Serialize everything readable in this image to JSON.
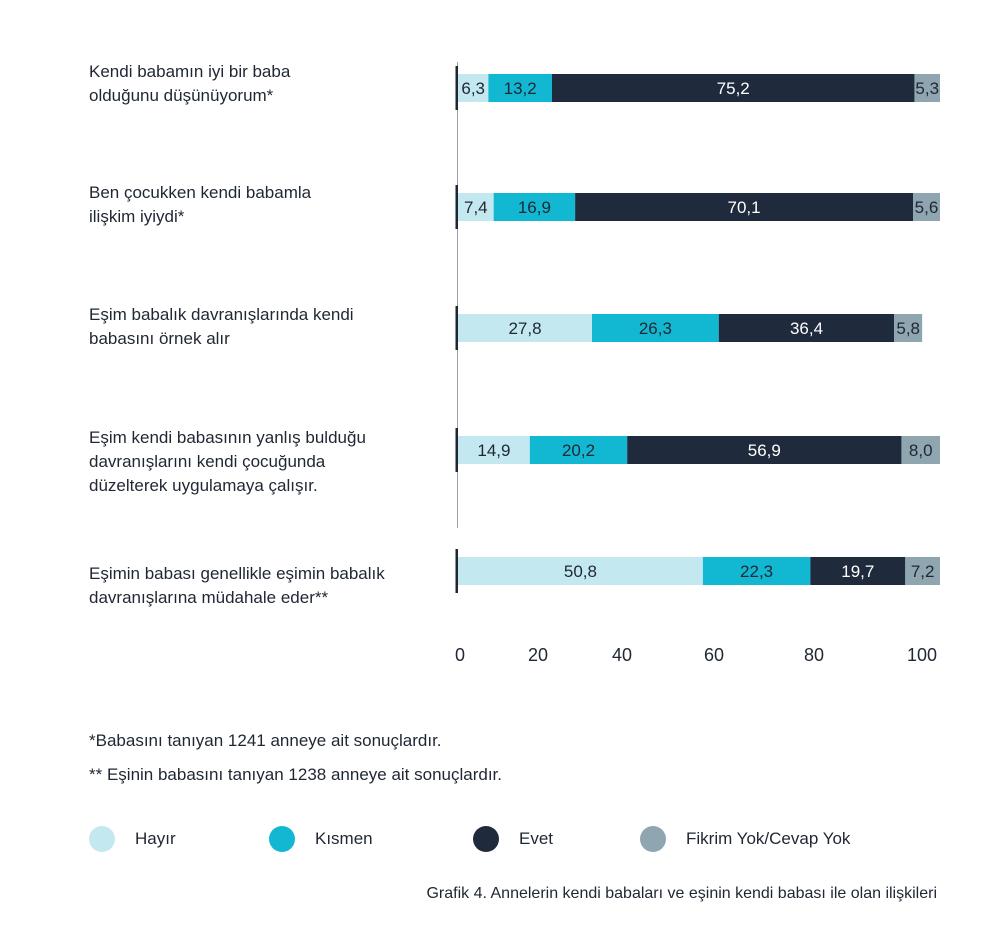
{
  "chart_data": {
    "type": "bar",
    "orientation": "horizontal",
    "stacked": true,
    "categories": [
      "Kendi babamın iyi bir baba olduğunu düşünüyorum*",
      "Ben çocukken kendi babamla ilişkim iyiydi*",
      "Eşim babalık davranışlarında kendi babasını örnek alır",
      "Eşim kendi babasının yanlış bulduğu davranışlarını kendi çocuğunda düzelterek uygulamaya çalışır.",
      "Eşimin babası genellikle eşimin babalık davranışlarına müdahale eder**"
    ],
    "series": [
      {
        "name": "Hayır",
        "color": "#c4e8f0",
        "text_color": "#1f2733",
        "values": [
          6.3,
          7.4,
          27.8,
          14.9,
          50.8
        ]
      },
      {
        "name": "Kısmen",
        "color": "#12b8d2",
        "text_color": "#1f2733",
        "values": [
          13.2,
          16.9,
          26.3,
          20.2,
          22.3
        ]
      },
      {
        "name": "Evet",
        "color": "#1f2a3c",
        "text_color": "#ffffff",
        "values": [
          75.2,
          70.1,
          36.4,
          56.9,
          19.7
        ]
      },
      {
        "name": "Fikrim Yok/Cevap Yok",
        "color": "#8fa6b0",
        "text_color": "#1f2733",
        "values": [
          5.3,
          5.6,
          5.8,
          8.0,
          7.2
        ]
      }
    ],
    "value_labels": [
      [
        "6,3",
        "13,2",
        "75,2",
        "5,3"
      ],
      [
        "7,4",
        "16,9",
        "70,1",
        "5,6"
      ],
      [
        "27,8",
        "26,3",
        "36,4",
        "5,8"
      ],
      [
        "14,9",
        "20,2",
        "56,9",
        "8,0"
      ],
      [
        "50,8",
        "22,3",
        "19,7",
        "7,2"
      ]
    ],
    "x_ticks": [
      "0",
      "20",
      "40",
      "60",
      "80",
      "100"
    ],
    "xlim": [
      0,
      100
    ],
    "grid": false,
    "legend_position": "bottom"
  },
  "categories_display": [
    "Kendi babamın iyi bir baba\nolduğunu düşünüyorum*",
    "Ben çocukken kendi babamla\nilişkim iyiydi*",
    "Eşim babalık davranışlarında kendi\nbabasını örnek alır",
    "Eşim kendi babasının yanlış bulduğu\ndavranışlarını kendi çocuğunda\ndüzelterek uygulamaya çalışır.",
    "Eşimin babası genellikle eşimin babalık\ndavranışlarına müdahale eder**"
  ],
  "notes": {
    "note1": "*Babasını tanıyan 1241 anneye ait sonuçlardır.",
    "note2": "** Eşinin babasını tanıyan 1238 anneye ait sonuçlardır."
  },
  "legend": [
    "Hayır",
    "Kısmen",
    "Evet",
    "Fikrim Yok/Cevap Yok"
  ],
  "caption": "Grafik 4. Annelerin kendi babaları ve eşinin kendi babası ile olan ilişkileri"
}
